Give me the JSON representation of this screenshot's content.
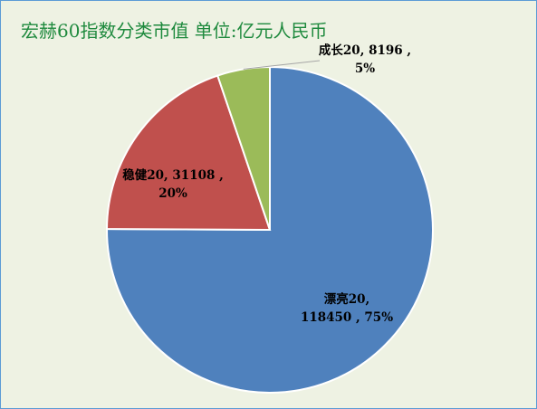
{
  "chart_data": {
    "type": "pie",
    "title": "宏赫60指数分类市值   单位:亿元人民币",
    "series": [
      {
        "categories": [
          "漂亮20",
          "稳健20",
          "成长20"
        ],
        "values": [
          118450,
          31108,
          8196
        ],
        "percent": [
          75,
          20,
          5
        ],
        "labels": [
          [
            "漂亮20,",
            "118450 , 75%"
          ],
          [
            "稳健20, 31108 ,",
            "20%"
          ],
          [
            "成长20, 8196 ,",
            "5%"
          ]
        ],
        "colors": [
          "#4f81bd",
          "#c0504d",
          "#9bbb59"
        ]
      }
    ],
    "start_angle_clock": "12 o'clock",
    "direction": "clockwise",
    "legend": "none",
    "data_labels": "category, value, percent",
    "background": "#eef2e3",
    "title_color": "#1f8a3e"
  }
}
